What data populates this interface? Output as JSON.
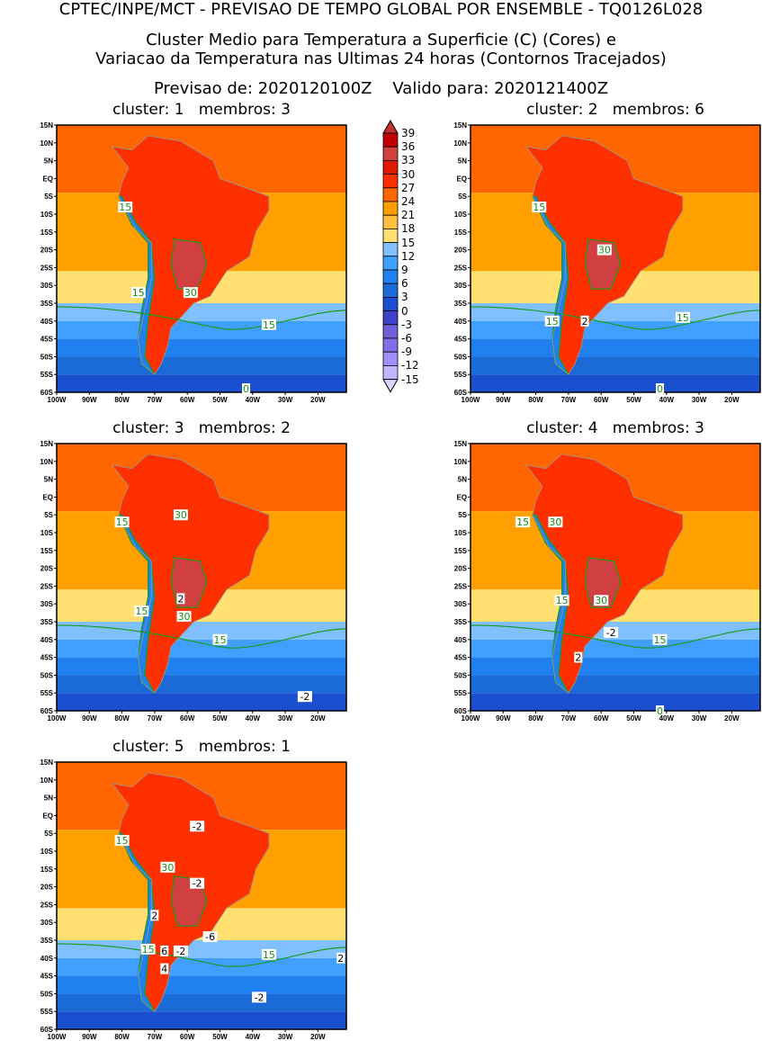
{
  "header": {
    "line1": "CPTEC/INPE/MCT - PREVISAO DE TEMPO GLOBAL POR ENSEMBLE - TQ0126L028",
    "line2": "Cluster Medio para Temperatura a Superficie (C) (Cores) e",
    "line3": "Variacao da Temperatura nas Ultimas 24 horas (Contornos Tracejados)",
    "line4": "Previsao de: 2020120100Z    Valido para: 2020121400Z"
  },
  "axes": {
    "lat_ticks": [
      "15N",
      "10N",
      "5N",
      "EQ",
      "5S",
      "10S",
      "15S",
      "20S",
      "25S",
      "30S",
      "35S",
      "40S",
      "45S",
      "50S",
      "55S",
      "60S"
    ],
    "lon_ticks": [
      "100W",
      "90W",
      "80W",
      "70W",
      "60W",
      "50W",
      "40W",
      "30W",
      "20W"
    ]
  },
  "colorbar": {
    "labels": [
      "39",
      "36",
      "33",
      "30",
      "27",
      "24",
      "21",
      "18",
      "15",
      "12",
      "9",
      "6",
      "3",
      "0",
      "-3",
      "-6",
      "-9",
      "-12",
      "-15"
    ],
    "colors": [
      "#c00000",
      "#d04040",
      "#e01a00",
      "#ff3000",
      "#ff6600",
      "#ffa000",
      "#ffc040",
      "#ffe070",
      "#80c0ff",
      "#40a0ff",
      "#2080f0",
      "#1a6ad8",
      "#1a50d0",
      "#4040c8",
      "#7060d8",
      "#8070e8",
      "#a090ff",
      "#c0b8ff"
    ],
    "above": "#c03030",
    "below": "#d8d8ff"
  },
  "panels": [
    {
      "title": "cluster: 1   membros: 3",
      "labels": [
        "15",
        "15",
        "30",
        "15",
        "0"
      ]
    },
    {
      "title": "cluster: 2   membros: 6",
      "labels": [
        "15",
        "30",
        "15",
        "2",
        "15",
        "0"
      ]
    },
    {
      "title": "cluster: 3   membros: 2",
      "labels": [
        "15",
        "30",
        "15",
        "2",
        "30",
        "15",
        "-2"
      ]
    },
    {
      "title": "cluster: 4   membros: 3",
      "labels": [
        "15",
        "30",
        "15",
        "30",
        "-2",
        "15",
        "2",
        "0"
      ]
    },
    {
      "title": "cluster: 5   membros: 1",
      "labels": [
        "15",
        "30",
        "-2",
        "-2",
        "2",
        "15",
        "6",
        "4",
        "-6",
        "-2",
        "15",
        "-2",
        "2"
      ]
    }
  ]
}
